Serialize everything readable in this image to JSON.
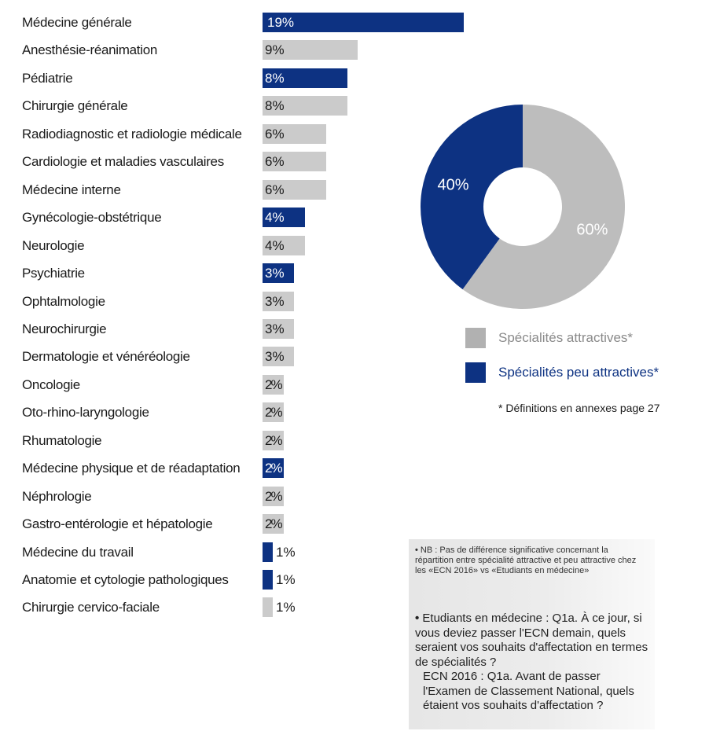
{
  "colors": {
    "navy": "#0d3282",
    "gray": "#cbcbcb",
    "donut_gray": "#bdbdbd",
    "legend_gray": "#b1b1b1"
  },
  "chart_data": [
    {
      "type": "bar",
      "orientation": "horizontal",
      "categories": [
        "Médecine générale",
        "Anesthésie-réanimation",
        "Pédiatrie",
        "Chirurgie générale",
        "Radiodiagnostic et radiologie médicale",
        "Cardiologie et maladies vasculaires",
        "Médecine interne",
        "Gynécologie-obstétrique",
        "Neurologie",
        "Psychiatrie",
        "Ophtalmologie",
        "Neurochirurgie",
        "Dermatologie et vénéréologie",
        "Oncologie",
        "Oto-rhino-laryngologie",
        "Rhumatologie",
        "Médecine physique et de réadaptation",
        "Néphrologie",
        "Gastro-entérologie et hépatologie",
        "Médecine du travail",
        "Anatomie et cytologie pathologiques",
        "Chirurgie cervico-faciale"
      ],
      "values": [
        19,
        9,
        8,
        8,
        6,
        6,
        6,
        4,
        4,
        3,
        3,
        3,
        3,
        2,
        2,
        2,
        2,
        2,
        2,
        1,
        1,
        1
      ],
      "value_labels": [
        "19%",
        "9%",
        "8%",
        "8%",
        "6%",
        "6%",
        "6%",
        "4%",
        "4%",
        "3%",
        "3%",
        "3%",
        "3%",
        "2%",
        "2%",
        "2%",
        "2%",
        "2%",
        "2%",
        "1%",
        "1%",
        "1%"
      ],
      "group": [
        "peu",
        "attr",
        "peu",
        "attr",
        "attr",
        "attr",
        "attr",
        "peu",
        "attr",
        "peu",
        "attr",
        "attr",
        "attr",
        "attr",
        "attr",
        "attr",
        "peu",
        "attr",
        "attr",
        "peu",
        "peu",
        "attr"
      ],
      "xlim": [
        0,
        19
      ],
      "grid": false,
      "legend": "none"
    },
    {
      "type": "pie",
      "style": "donut",
      "labels": [
        "Spécialités attractives*",
        "Spécialités peu attractives*"
      ],
      "values": [
        60,
        40
      ],
      "value_labels": [
        "60%",
        "40%"
      ],
      "legend": "below"
    }
  ],
  "legend": {
    "attractive": "Spécialités attractives*",
    "less_attractive": "Spécialités peu attractives*"
  },
  "footnote": "* Définitions en annexes page 27",
  "note": {
    "nb": "NB : Pas de différence significative concernant la répartition entre spécialité attractive et peu attractive chez les «ECN 2016» vs «Etudiants en médecine»",
    "question_students": "Etudiants en médecine : Q1a. À ce jour, si vous deviez passer l'ECN demain, quels seraient vos souhaits d'affectation en termes de spécialités ?",
    "question_ecn": "ECN 2016 : Q1a. Avant de passer l'Examen de Classement National, quels étaient vos souhaits d'affectation ?"
  }
}
